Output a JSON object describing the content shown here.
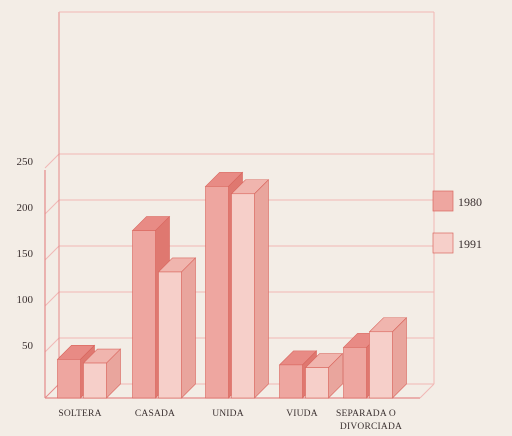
{
  "chart_data": {
    "type": "bar",
    "title": "",
    "xlabel": "",
    "ylabel": "",
    "ylim": [
      0,
      250
    ],
    "yticks": [
      50,
      100,
      150,
      200,
      250
    ],
    "categories": [
      [
        "SOLTERA"
      ],
      [
        "CASADA"
      ],
      [
        "UNIDA"
      ],
      [
        "VIUDA"
      ],
      [
        "SEPARADA O",
        "DIVORCIADA"
      ]
    ],
    "series": [
      {
        "name": "1980",
        "values": [
          42,
          182,
          230,
          36,
          55
        ]
      },
      {
        "name": "1991",
        "values": [
          38,
          137,
          222,
          33,
          72
        ]
      }
    ],
    "grid": "horizontal",
    "legend_position": "right",
    "colors": {
      "background": "#f3ede6",
      "axis": "#e58a8a",
      "grid": "#f1b7b4",
      "s1_front": "#eea6a0",
      "s1_top": "#e88b85",
      "s1_side": "#df7870",
      "s2_front": "#f6cfc9",
      "s2_top": "#f0b5ae",
      "s2_side": "#e9a59d",
      "edge": "#d9665e"
    }
  }
}
